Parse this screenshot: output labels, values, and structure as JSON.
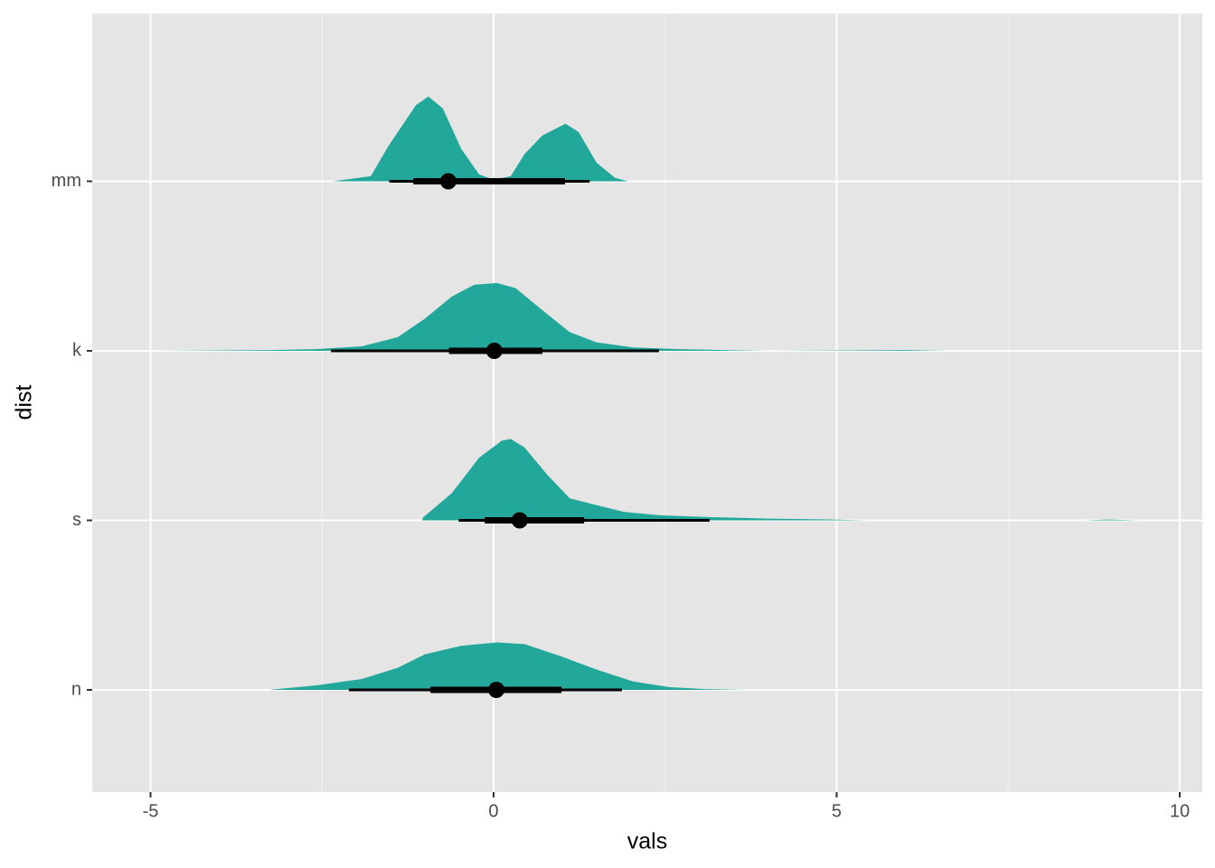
{
  "chart_data": {
    "type": "halfeye",
    "x_label": "vals",
    "y_label": "dist",
    "xlim": [
      -5.85,
      10.33
    ],
    "xticks": [
      -5,
      0,
      5,
      10
    ],
    "minor_xticks": [
      -2.5,
      2.5,
      7.5
    ],
    "grid": true,
    "color": "#22a79b",
    "point_color": "#000000",
    "series": [
      {
        "name": "n",
        "x": [
          -3.28,
          -2.58,
          -1.92,
          -1.4,
          -1.0,
          -0.47,
          0.05,
          0.45,
          0.97,
          1.5,
          2.03,
          2.56,
          3.08,
          3.74
        ],
        "density": [
          0,
          0.027,
          0.064,
          0.13,
          0.21,
          0.26,
          0.28,
          0.27,
          0.2,
          0.12,
          0.05,
          0.016,
          0.005,
          0
        ],
        "point": 0.04,
        "interval_66": [
          -0.92,
          0.99
        ],
        "interval_95": [
          -2.11,
          1.87
        ]
      },
      {
        "name": "s",
        "x": [
          -1.04,
          -1.03,
          -0.61,
          -0.21,
          0.12,
          0.25,
          0.45,
          0.78,
          1.11,
          1.5,
          1.9,
          2.42,
          3.08,
          4.01,
          4.93,
          5.45,
          8.62,
          8.95,
          9.41
        ],
        "density": [
          0,
          0.016,
          0.16,
          0.37,
          0.47,
          0.48,
          0.43,
          0.27,
          0.13,
          0.09,
          0.05,
          0.03,
          0.02,
          0.01,
          0.005,
          0,
          0,
          0.005,
          0
        ],
        "point": 0.38,
        "interval_66": [
          -0.13,
          1.32
        ],
        "interval_95": [
          -0.51,
          3.15
        ]
      },
      {
        "name": "k",
        "x": [
          -4.95,
          -3.24,
          -2.58,
          -1.92,
          -1.4,
          -1.0,
          -0.61,
          -0.28,
          0.05,
          0.32,
          0.71,
          1.11,
          1.5,
          2.03,
          2.69,
          3.35,
          4.01,
          5.98,
          6.64
        ],
        "density": [
          0,
          0.005,
          0.01,
          0.027,
          0.08,
          0.19,
          0.32,
          0.39,
          0.4,
          0.37,
          0.24,
          0.11,
          0.05,
          0.02,
          0.01,
          0.005,
          0,
          0.005,
          0
        ],
        "point": 0.01,
        "interval_66": [
          -0.65,
          0.71
        ],
        "interval_95": [
          -2.37,
          2.41
        ]
      },
      {
        "name": "mm",
        "x": [
          -2.35,
          -1.79,
          -1.53,
          -1.13,
          -0.95,
          -0.74,
          -0.47,
          -0.21,
          0,
          0.25,
          0.45,
          0.71,
          1.05,
          1.24,
          1.5,
          1.77,
          1.96
        ],
        "density": [
          0,
          0.03,
          0.21,
          0.45,
          0.5,
          0.43,
          0.19,
          0.04,
          0.01,
          0.03,
          0.16,
          0.27,
          0.34,
          0.29,
          0.11,
          0.02,
          0
        ],
        "point": -0.66,
        "interval_66": [
          -1.17,
          1.04
        ],
        "interval_95": [
          -1.52,
          1.4
        ]
      }
    ]
  }
}
